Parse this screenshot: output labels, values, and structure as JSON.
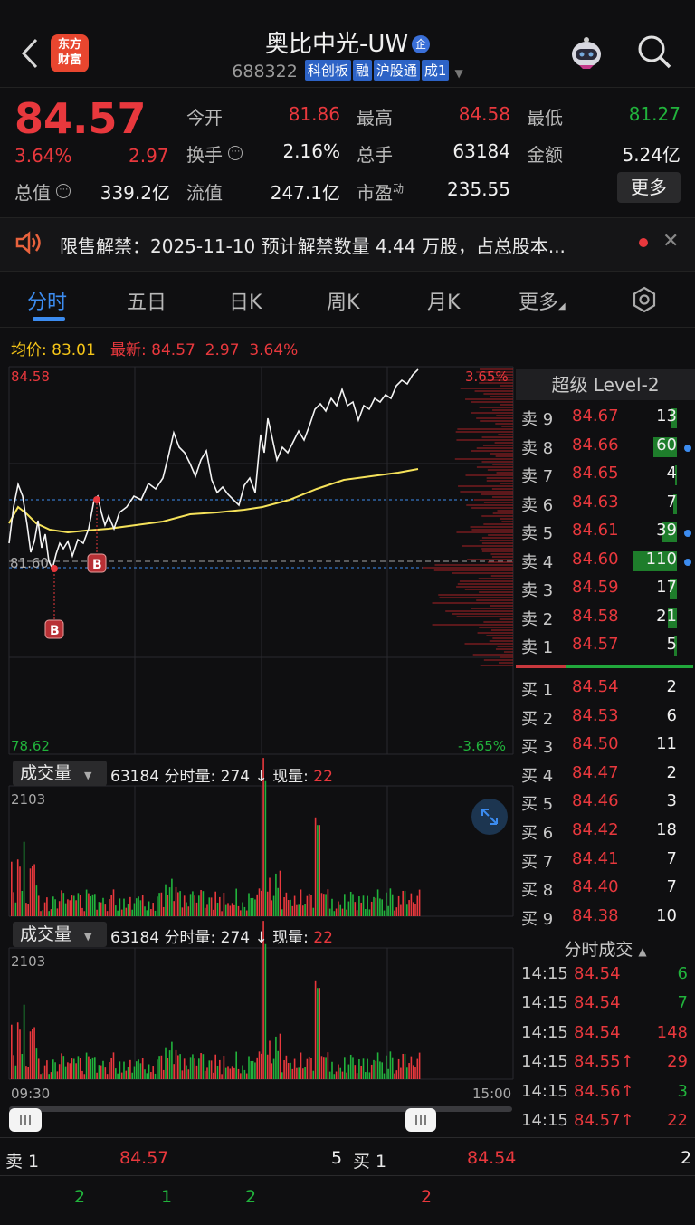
{
  "header": {
    "logo_text": "东方\n财富",
    "stock_name": "奥比中光-UW",
    "badge": "企",
    "code": "688322",
    "tags": [
      "科创板",
      "融",
      "沪股通",
      "成1"
    ]
  },
  "quote": {
    "price": "84.57",
    "change_pct": "3.64%",
    "change": "2.97",
    "open_label": "今开",
    "open": "81.86",
    "high_label": "最高",
    "high": "84.58",
    "low_label": "最低",
    "low": "81.27",
    "turnover_label": "换手",
    "turnover": "2.16%",
    "volume_label": "总手",
    "volume": "63184",
    "amount_label": "金额",
    "amount": "5.24亿",
    "mcap_label": "总值",
    "mcap": "339.2亿",
    "float_label": "流值",
    "float_cap": "247.1亿",
    "pe_label": "市盈",
    "pe_sup": "动",
    "pe": "235.55",
    "more": "更多"
  },
  "notice": {
    "text": "限售解禁：2025-11-10 预计解禁数量 4.44 万股，占总股本..."
  },
  "tabs": [
    "分时",
    "五日",
    "日K",
    "周K",
    "月K",
    "更多"
  ],
  "avg_row": {
    "avg_label": "均价:",
    "avg": "83.01",
    "latest_label": "最新:",
    "latest": "84.57",
    "chg": "2.97",
    "pct": "3.64%"
  },
  "chart": {
    "price_top": "84.58",
    "price_mid": "81.60",
    "price_bottom": "78.62",
    "pct_top": "3.65%",
    "pct_bottom": "-3.65%",
    "marker": "B",
    "vol_label": "成交量",
    "vol_total": "63184",
    "vol_info": "分时量: 274 ↓ 现量:",
    "vol_now": "22",
    "vol_max": "2103",
    "time_start": "09:30",
    "time_end": "15:00"
  },
  "level2": {
    "title": "超级 Level-2",
    "asks": [
      {
        "label": "卖 9",
        "price": "84.67",
        "vol": "13",
        "bar": 0.15,
        "dot": false
      },
      {
        "label": "卖 8",
        "price": "84.66",
        "vol": "60",
        "bar": 0.55,
        "dot": true
      },
      {
        "label": "卖 7",
        "price": "84.65",
        "vol": "4",
        "bar": 0.05,
        "dot": false
      },
      {
        "label": "卖 6",
        "price": "84.63",
        "vol": "7",
        "bar": 0.08,
        "dot": false
      },
      {
        "label": "卖 5",
        "price": "84.61",
        "vol": "39",
        "bar": 0.35,
        "dot": true
      },
      {
        "label": "卖 4",
        "price": "84.60",
        "vol": "110",
        "bar": 1.0,
        "dot": true
      },
      {
        "label": "卖 3",
        "price": "84.59",
        "vol": "17",
        "bar": 0.16,
        "dot": false
      },
      {
        "label": "卖 2",
        "price": "84.58",
        "vol": "21",
        "bar": 0.2,
        "dot": false
      },
      {
        "label": "卖 1",
        "price": "84.57",
        "vol": "5",
        "bar": 0.06,
        "dot": false
      }
    ],
    "bids": [
      {
        "label": "买 1",
        "price": "84.54",
        "vol": "2"
      },
      {
        "label": "买 2",
        "price": "84.53",
        "vol": "6"
      },
      {
        "label": "买 3",
        "price": "84.50",
        "vol": "11"
      },
      {
        "label": "买 4",
        "price": "84.47",
        "vol": "2"
      },
      {
        "label": "买 5",
        "price": "84.46",
        "vol": "3"
      },
      {
        "label": "买 6",
        "price": "84.42",
        "vol": "18"
      },
      {
        "label": "买 7",
        "price": "84.41",
        "vol": "7"
      },
      {
        "label": "买 8",
        "price": "84.40",
        "vol": "7"
      },
      {
        "label": "买 9",
        "price": "84.38",
        "vol": "10"
      }
    ]
  },
  "trades": {
    "title": "分时成交",
    "rows": [
      {
        "time": "14:15",
        "price": "84.54",
        "vol": "6",
        "dir": "green"
      },
      {
        "time": "14:15",
        "price": "84.54",
        "vol": "7",
        "dir": "green"
      },
      {
        "time": "14:15",
        "price": "84.54",
        "vol": "148",
        "dir": "red"
      },
      {
        "time": "14:15",
        "price": "84.55↑",
        "vol": "29",
        "dir": "red"
      },
      {
        "time": "14:15",
        "price": "84.56↑",
        "vol": "3",
        "dir": "green"
      },
      {
        "time": "14:15",
        "price": "84.57↑",
        "vol": "22",
        "dir": "red"
      }
    ]
  },
  "bottom": {
    "sell_label": "卖 1",
    "sell_price": "84.57",
    "sell_vol": "5",
    "buy_label": "买 1",
    "buy_price": "84.54",
    "buy_vol": "2",
    "sell_queue": [
      "2",
      "1",
      "2"
    ],
    "buy_queue": [
      "2"
    ]
  },
  "colors": {
    "up": "#e8383d",
    "down": "#21b33c",
    "accent": "#3c8cf0",
    "avg_line": "#f5e25a"
  }
}
